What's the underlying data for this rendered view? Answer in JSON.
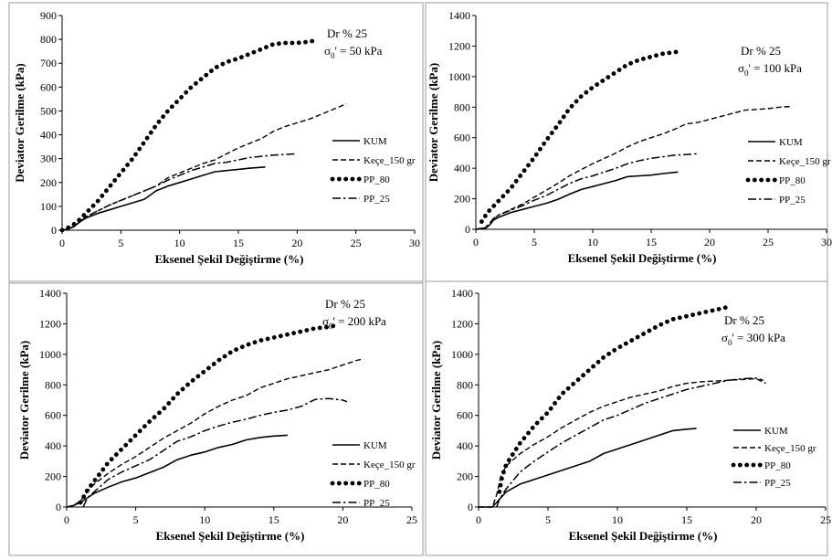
{
  "chart_data": [
    {
      "type": "line",
      "title": "",
      "xlabel": "Eksenel Şekil Değiştirme (%)",
      "ylabel": "Deviator Gerilme (kPa)",
      "xlim": [
        0,
        30
      ],
      "ylim": [
        0,
        900
      ],
      "x_ticks": [
        "0",
        "5",
        "10",
        "15",
        "20",
        "25",
        "30"
      ],
      "y_ticks": [
        "0",
        "100",
        "200",
        "300",
        "400",
        "500",
        "600",
        "700",
        "800",
        "900"
      ],
      "annotation_line1": "Dr % 25",
      "annotation_sigma": "σ",
      "annotation_sub": "0",
      "annotation_rest": "' = 50 kPa",
      "legend_position": "right",
      "series": [
        {
          "name": "KUM",
          "style": "solid",
          "x": [
            0,
            0.5,
            1,
            1.5,
            2,
            3,
            4,
            5,
            6,
            7,
            8,
            9,
            10,
            11,
            12,
            13,
            14,
            15,
            16,
            17.3
          ],
          "y": [
            0,
            5,
            15,
            35,
            50,
            70,
            85,
            100,
            115,
            130,
            165,
            185,
            200,
            215,
            230,
            245,
            250,
            255,
            260,
            265
          ]
        },
        {
          "name": "Keçe_150 gr",
          "style": "dash",
          "x": [
            0,
            0.5,
            1,
            1.5,
            2,
            3,
            4,
            5,
            6,
            7,
            8,
            9,
            10,
            11,
            12,
            13,
            14,
            15,
            16,
            17,
            18,
            19,
            20,
            21,
            22,
            23,
            24.2
          ],
          "y": [
            0,
            5,
            15,
            35,
            55,
            80,
            105,
            125,
            145,
            165,
            185,
            220,
            240,
            260,
            280,
            295,
            320,
            345,
            365,
            385,
            415,
            435,
            450,
            465,
            485,
            505,
            530
          ]
        },
        {
          "name": "PP_80",
          "style": "dot",
          "x": [
            0,
            0.5,
            1,
            1.5,
            2,
            3,
            4,
            5,
            6,
            7,
            8,
            9,
            10,
            11,
            12,
            13,
            14,
            15,
            16,
            17,
            18,
            19,
            20,
            21,
            21.5
          ],
          "y": [
            0,
            10,
            25,
            45,
            70,
            120,
            180,
            240,
            300,
            370,
            440,
            500,
            550,
            600,
            640,
            680,
            705,
            720,
            740,
            760,
            780,
            785,
            785,
            790,
            795
          ]
        },
        {
          "name": "PP_25",
          "style": "dashdot",
          "x": [
            0,
            0.5,
            1,
            1.5,
            2,
            3,
            4,
            5,
            6,
            7,
            8,
            9,
            10,
            11,
            12,
            13,
            14,
            15,
            16,
            17,
            18,
            19,
            20
          ],
          "y": [
            0,
            5,
            15,
            35,
            55,
            80,
            105,
            125,
            145,
            165,
            185,
            210,
            230,
            250,
            265,
            280,
            285,
            295,
            305,
            310,
            315,
            318,
            320
          ]
        }
      ]
    },
    {
      "type": "line",
      "title": "",
      "xlabel": "Eksenel Şekil Değiştirme (%)",
      "ylabel": "Deviator Gerilme (kPa)",
      "xlim": [
        0,
        30
      ],
      "ylim": [
        0,
        1400
      ],
      "x_ticks": [
        "0",
        "5",
        "10",
        "15",
        "20",
        "25",
        "30"
      ],
      "y_ticks": [
        "0",
        "200",
        "400",
        "600",
        "800",
        "1000",
        "1200",
        "1400"
      ],
      "annotation_line1": "Dr % 25",
      "annotation_sigma": "σ",
      "annotation_sub": "0",
      "annotation_rest": "' = 100 kPa",
      "legend_position": "right",
      "series": [
        {
          "name": "KUM",
          "style": "solid",
          "x": [
            0,
            0.8,
            1.2,
            1.5,
            2,
            3,
            4,
            5,
            6,
            7,
            8,
            9,
            10,
            11,
            12,
            13,
            14,
            15,
            16,
            17.3
          ],
          "y": [
            0,
            5,
            30,
            60,
            80,
            110,
            130,
            150,
            170,
            195,
            230,
            260,
            280,
            300,
            320,
            345,
            350,
            355,
            365,
            375
          ]
        },
        {
          "name": "Keçe_150 gr",
          "style": "dash",
          "x": [
            0,
            0.8,
            1.2,
            1.5,
            2,
            3,
            4,
            5,
            6,
            7,
            8,
            9,
            10,
            11,
            12,
            13,
            14,
            15,
            16,
            17,
            18,
            19,
            20,
            21,
            22,
            23,
            24,
            25,
            26,
            27
          ],
          "y": [
            0,
            10,
            40,
            70,
            95,
            130,
            165,
            210,
            255,
            300,
            350,
            390,
            430,
            465,
            500,
            540,
            575,
            600,
            625,
            655,
            690,
            700,
            720,
            740,
            760,
            780,
            785,
            790,
            800,
            805
          ]
        },
        {
          "name": "PP_80",
          "style": "dot",
          "x": [
            0.5,
            1,
            1.5,
            2,
            3,
            4,
            5,
            6,
            7,
            8,
            9,
            10,
            11,
            12,
            13,
            14,
            15,
            16,
            17,
            17.5
          ],
          "y": [
            50,
            110,
            150,
            190,
            270,
            370,
            470,
            580,
            680,
            790,
            870,
            930,
            980,
            1030,
            1080,
            1110,
            1130,
            1150,
            1160,
            1165
          ]
        },
        {
          "name": "PP_25",
          "style": "dashdot",
          "x": [
            0,
            0.8,
            1.2,
            1.5,
            2,
            3,
            4,
            5,
            6,
            7,
            8,
            9,
            10,
            11,
            12,
            13,
            14,
            15,
            16,
            17,
            18,
            19
          ],
          "y": [
            0,
            10,
            40,
            70,
            95,
            125,
            155,
            190,
            220,
            260,
            300,
            330,
            350,
            375,
            400,
            430,
            450,
            465,
            475,
            485,
            490,
            495
          ]
        }
      ]
    },
    {
      "type": "line",
      "title": "",
      "xlabel": "Eksenel Şekil Değiştirme (%)",
      "ylabel": "Deviator Gerilme (kPa)",
      "xlim": [
        0,
        25
      ],
      "ylim": [
        0,
        1400
      ],
      "x_ticks": [
        "0",
        "5",
        "10",
        "15",
        "20",
        "25"
      ],
      "y_ticks": [
        "0",
        "200",
        "400",
        "600",
        "800",
        "1000",
        "1200",
        "1400"
      ],
      "annotation_line1": "Dr % 25",
      "annotation_sigma": "σ",
      "annotation_sub": "0",
      "annotation_rest": "' = 200 kPa",
      "legend_position": "right",
      "series": [
        {
          "name": "KUM",
          "style": "solid",
          "x": [
            0,
            0.5,
            1,
            1.5,
            2,
            3,
            4,
            5,
            6,
            7,
            8,
            9,
            10,
            11,
            12,
            13,
            14,
            15,
            16
          ],
          "y": [
            0,
            10,
            30,
            60,
            90,
            130,
            165,
            190,
            225,
            260,
            310,
            340,
            360,
            390,
            410,
            440,
            455,
            465,
            470
          ]
        },
        {
          "name": "Keçe_150 gr",
          "style": "dash",
          "x": [
            0,
            0.5,
            1,
            1.5,
            2,
            3,
            4,
            5,
            6,
            7,
            8,
            9,
            10,
            11,
            12,
            13,
            14,
            15,
            16,
            17,
            18,
            19,
            20,
            21,
            21.5
          ],
          "y": [
            0,
            10,
            40,
            100,
            150,
            220,
            280,
            330,
            390,
            450,
            500,
            550,
            610,
            660,
            700,
            730,
            780,
            810,
            840,
            860,
            880,
            900,
            930,
            960,
            970
          ]
        },
        {
          "name": "PP_80",
          "style": "dot",
          "x": [
            1,
            1.5,
            2,
            2.5,
            3,
            4,
            5,
            6,
            7,
            8,
            9,
            10,
            11,
            12,
            13,
            14,
            15,
            16,
            17,
            18,
            19,
            19.5
          ],
          "y": [
            30,
            110,
            170,
            230,
            290,
            380,
            470,
            560,
            640,
            740,
            820,
            890,
            960,
            1020,
            1060,
            1090,
            1110,
            1130,
            1150,
            1170,
            1180,
            1190
          ]
        },
        {
          "name": "PP_25",
          "style": "dashdot",
          "x": [
            1.2,
            1.5,
            2,
            3,
            4,
            5,
            6,
            7,
            8,
            9,
            10,
            11,
            12,
            13,
            14,
            15,
            16,
            17,
            18,
            19,
            20,
            20.3
          ],
          "y": [
            0,
            60,
            100,
            180,
            230,
            270,
            310,
            370,
            430,
            460,
            500,
            530,
            555,
            575,
            600,
            620,
            635,
            660,
            705,
            710,
            700,
            690
          ]
        }
      ]
    },
    {
      "type": "line",
      "title": "",
      "xlabel": "Eksenel Şekil Değiştirme (%)",
      "ylabel": "Deviator Gerilme (kPa)",
      "xlim": [
        0,
        25
      ],
      "ylim": [
        0,
        1400
      ],
      "x_ticks": [
        "0",
        "5",
        "10",
        "15",
        "20",
        "25"
      ],
      "y_ticks": [
        "0",
        "200",
        "400",
        "600",
        "800",
        "1000",
        "1200",
        "1400"
      ],
      "annotation_line1": "Dr % 25",
      "annotation_sigma": "σ",
      "annotation_sub": "0",
      "annotation_rest": "' = 300 kPa",
      "legend_position": "right",
      "series": [
        {
          "name": "KUM",
          "style": "solid",
          "x": [
            0,
            1,
            1.5,
            2,
            3,
            4,
            5,
            6,
            7,
            8,
            9,
            10,
            11,
            12,
            13,
            14,
            15,
            15.7
          ],
          "y": [
            0,
            0,
            50,
            100,
            150,
            180,
            210,
            240,
            270,
            300,
            350,
            380,
            410,
            440,
            470,
            500,
            510,
            515
          ]
        },
        {
          "name": "Keçe_150 gr",
          "style": "dash",
          "x": [
            0,
            1,
            1.3,
            1.6,
            2,
            3,
            4,
            5,
            6,
            7,
            8,
            9,
            10,
            11,
            12,
            13,
            14,
            15,
            16,
            17,
            18,
            19,
            20,
            20.7
          ],
          "y": [
            0,
            0,
            80,
            200,
            270,
            350,
            410,
            460,
            520,
            570,
            620,
            660,
            690,
            720,
            740,
            760,
            790,
            810,
            820,
            825,
            830,
            835,
            840,
            810
          ]
        },
        {
          "name": "PP_80",
          "style": "dot",
          "x": [
            1.5,
            1.7,
            2,
            2.5,
            3,
            4,
            5,
            6,
            7,
            8,
            9,
            10,
            11,
            12,
            13,
            14,
            15,
            16,
            17,
            18
          ],
          "y": [
            100,
            200,
            280,
            350,
            420,
            530,
            620,
            740,
            820,
            900,
            980,
            1040,
            1090,
            1140,
            1190,
            1230,
            1250,
            1270,
            1290,
            1310
          ]
        },
        {
          "name": "PP_25",
          "style": "dashdot",
          "x": [
            1.3,
            1.5,
            2,
            3,
            4,
            5,
            6,
            7,
            8,
            9,
            10,
            11,
            12,
            13,
            14,
            15,
            16,
            17,
            18,
            19,
            20,
            20.5
          ],
          "y": [
            0,
            50,
            120,
            230,
            300,
            360,
            420,
            470,
            520,
            570,
            600,
            640,
            680,
            710,
            740,
            770,
            790,
            810,
            830,
            840,
            845,
            830
          ]
        }
      ]
    }
  ]
}
